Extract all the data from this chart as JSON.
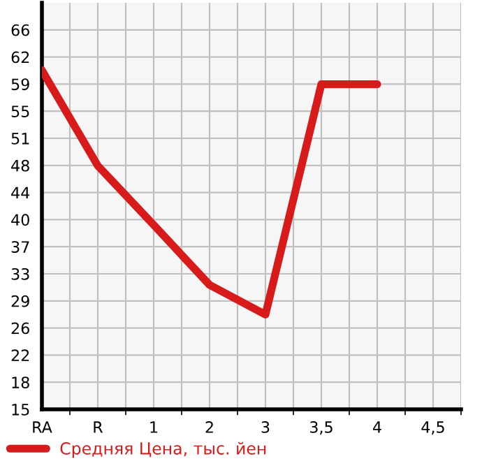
{
  "chart_data": {
    "type": "line",
    "categories": [
      "RA",
      "R",
      "1",
      "2",
      "3",
      "3,5",
      "4",
      "4,5"
    ],
    "series": [
      {
        "name": "Средняя Цена, тыс. йен",
        "color": "#d71a1a",
        "values": [
          60.5,
          47.6,
          39.6,
          31.5,
          27.5,
          58.6,
          58.6,
          null
        ]
      }
    ],
    "ylim": [
      14.7,
      69.6
    ],
    "yticks": [
      {
        "value": 14.7,
        "label": "15"
      },
      {
        "value": 18.36,
        "label": "18"
      },
      {
        "value": 22.02,
        "label": "22"
      },
      {
        "value": 25.68,
        "label": "26"
      },
      {
        "value": 29.34,
        "label": "29"
      },
      {
        "value": 33.0,
        "label": "33"
      },
      {
        "value": 36.66,
        "label": "37"
      },
      {
        "value": 40.32,
        "label": "40"
      },
      {
        "value": 43.98,
        "label": "44"
      },
      {
        "value": 47.64,
        "label": "48"
      },
      {
        "value": 51.3,
        "label": "51"
      },
      {
        "value": 54.96,
        "label": "55"
      },
      {
        "value": 58.62,
        "label": "59"
      },
      {
        "value": 62.28,
        "label": "62"
      },
      {
        "value": 65.94,
        "label": "66"
      }
    ],
    "grid": true,
    "legend": "bottom",
    "marker": "none",
    "line_style": "solid"
  }
}
